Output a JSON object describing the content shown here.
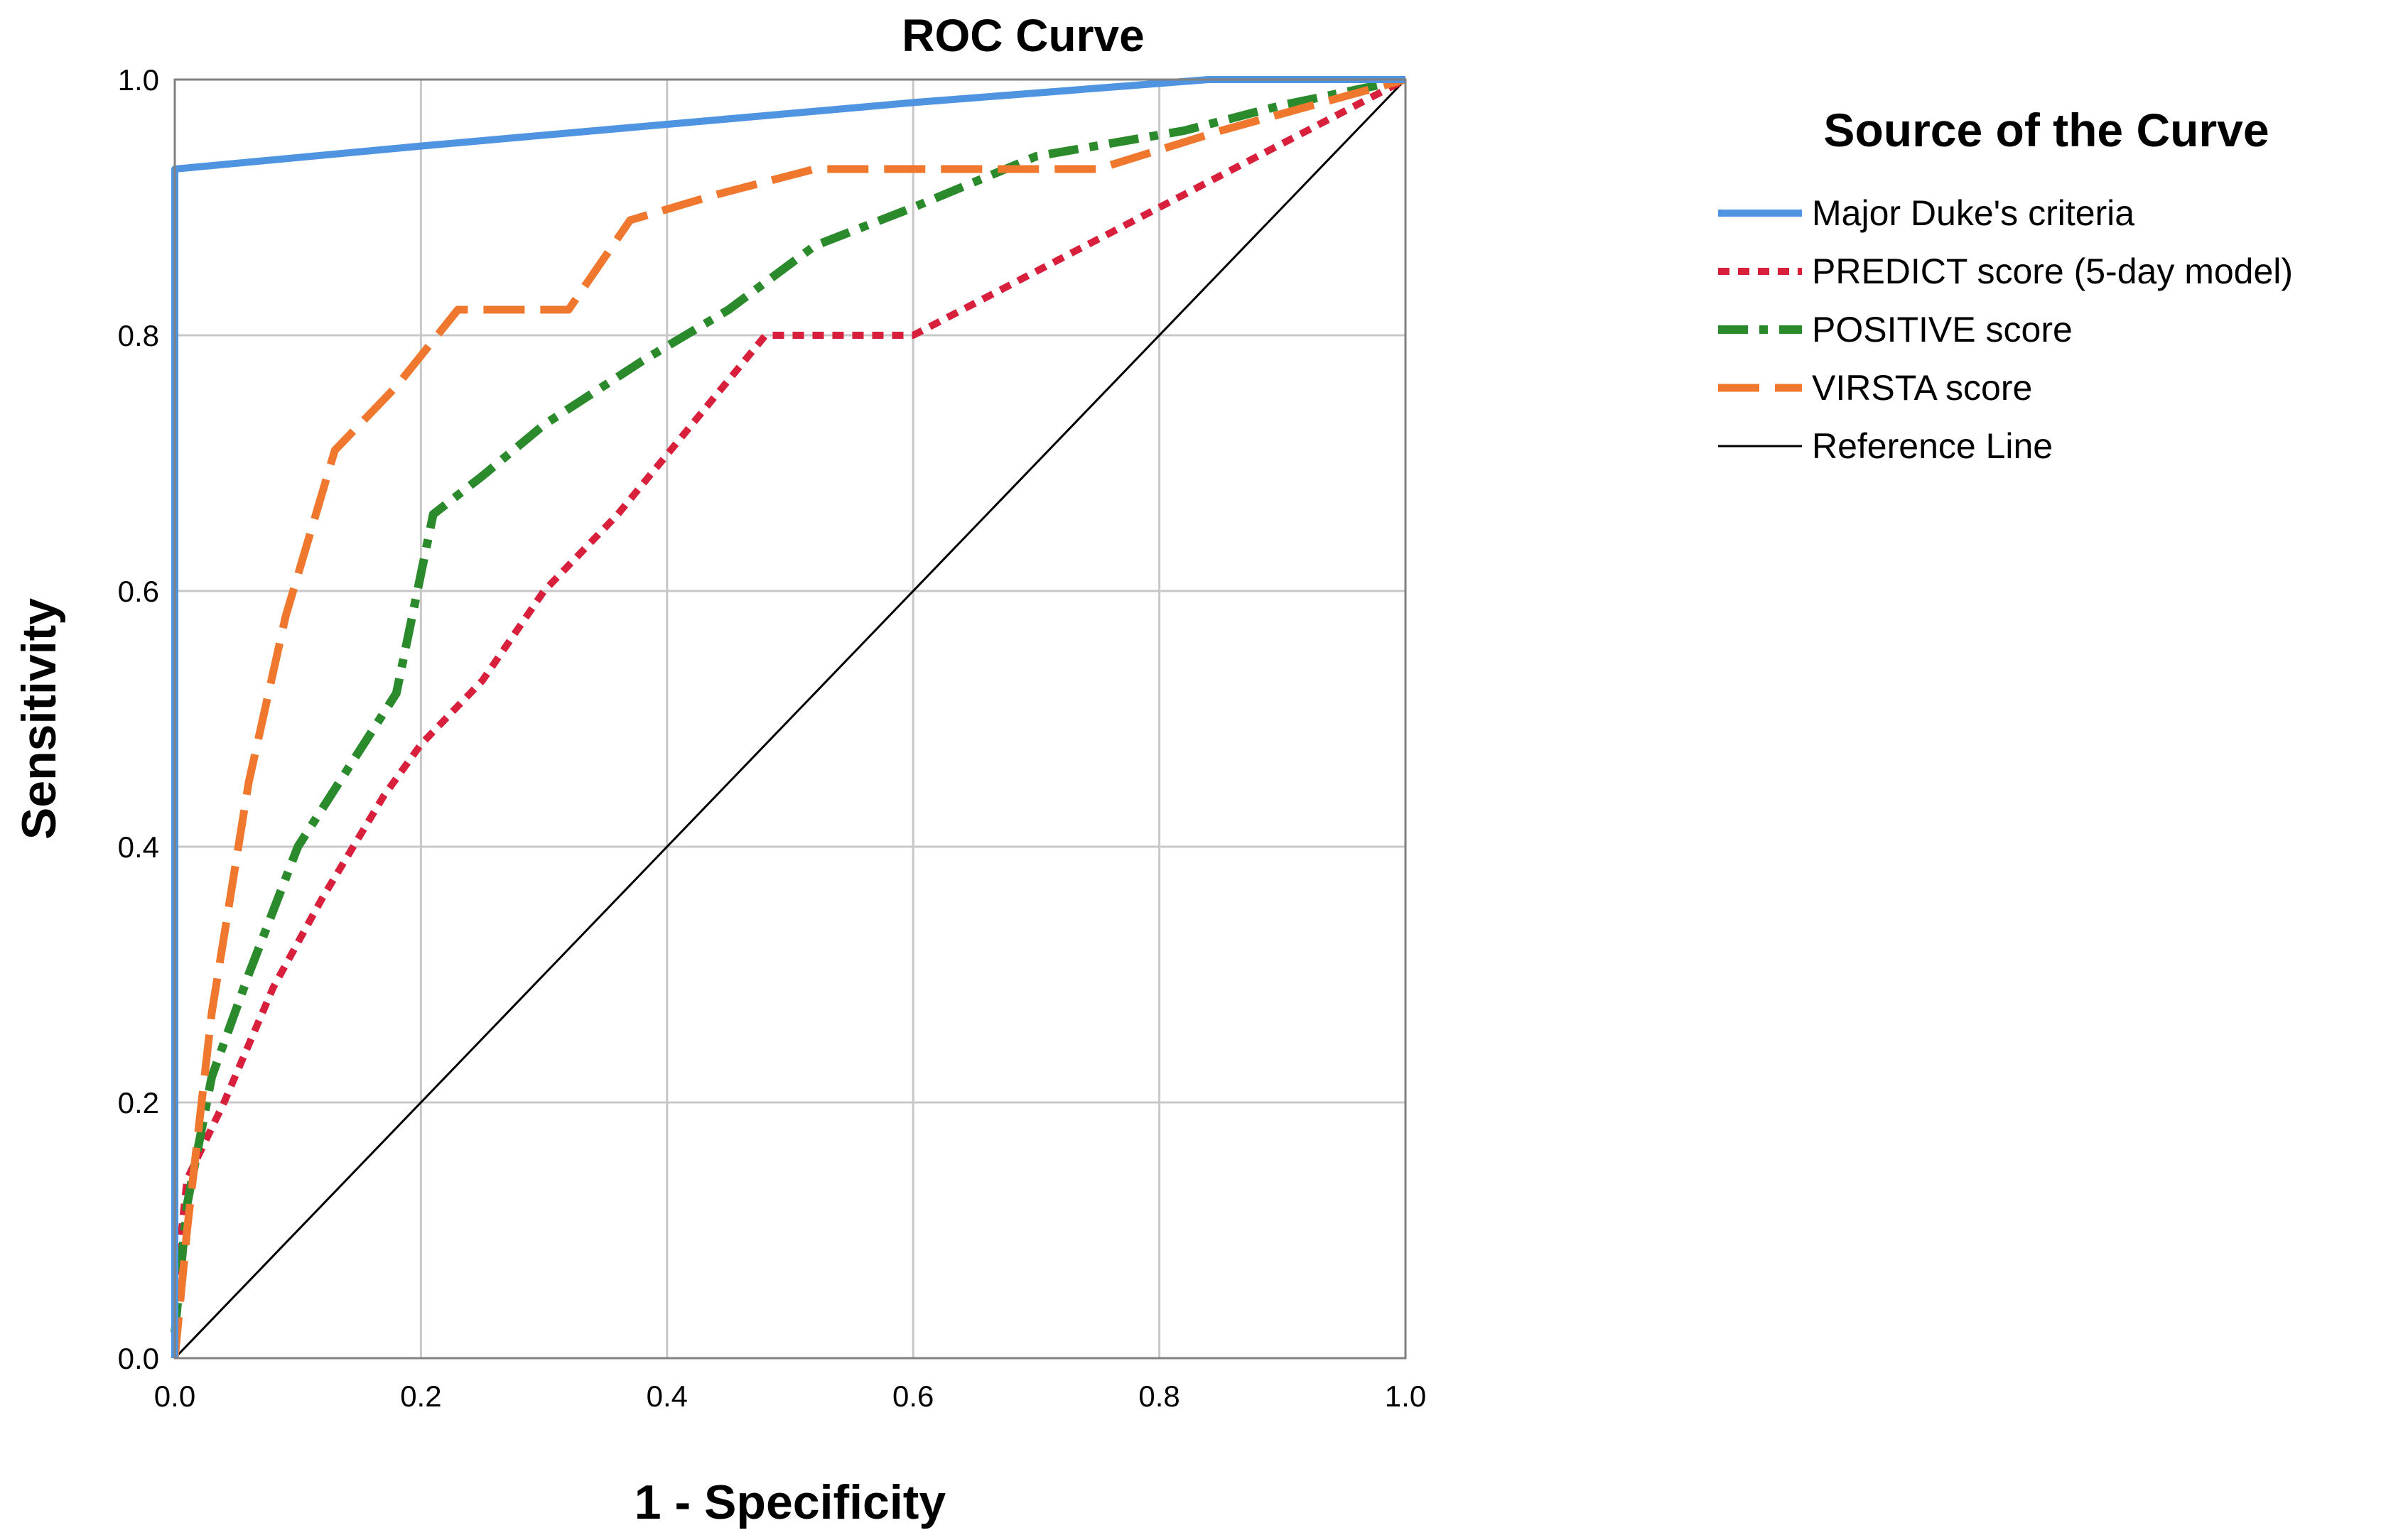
{
  "chart_data": {
    "type": "line",
    "title": "ROC Curve",
    "xlabel": "1 - Specificity",
    "ylabel": "Sensitivity",
    "xlim": [
      0,
      1
    ],
    "ylim": [
      0,
      1
    ],
    "x_ticks": [
      "0.0",
      "0.2",
      "0.4",
      "0.6",
      "0.8",
      "1.0"
    ],
    "y_ticks": [
      "0.0",
      "0.2",
      "0.4",
      "0.6",
      "0.8",
      "1.0"
    ],
    "grid": true,
    "legend_title": "Source of the Curve",
    "legend_position": "right",
    "series": [
      {
        "name": "Major Duke's criteria",
        "color": "#4e94e0",
        "style": "solid",
        "points": [
          [
            0,
            0
          ],
          [
            0,
            0.93
          ],
          [
            0.2,
            0.948
          ],
          [
            0.4,
            0.965
          ],
          [
            0.6,
            0.982
          ],
          [
            0.84,
            1.0
          ],
          [
            1.0,
            1.0
          ]
        ]
      },
      {
        "name": "PREDICT score (5-day model)",
        "color": "#d81f3c",
        "style": "dotted",
        "points": [
          [
            0,
            0.05
          ],
          [
            0.01,
            0.14
          ],
          [
            0.04,
            0.2
          ],
          [
            0.08,
            0.29
          ],
          [
            0.12,
            0.36
          ],
          [
            0.17,
            0.44
          ],
          [
            0.2,
            0.48
          ],
          [
            0.25,
            0.53
          ],
          [
            0.3,
            0.6
          ],
          [
            0.36,
            0.66
          ],
          [
            0.42,
            0.73
          ],
          [
            0.48,
            0.8
          ],
          [
            0.6,
            0.8
          ],
          [
            0.68,
            0.84
          ],
          [
            0.8,
            0.9
          ],
          [
            0.9,
            0.95
          ],
          [
            1.0,
            1.0
          ]
        ]
      },
      {
        "name": "POSITIVE score",
        "color": "#2b8a2b",
        "style": "dashdot",
        "points": [
          [
            0,
            0.02
          ],
          [
            0.01,
            0.12
          ],
          [
            0.03,
            0.22
          ],
          [
            0.06,
            0.3
          ],
          [
            0.1,
            0.4
          ],
          [
            0.14,
            0.46
          ],
          [
            0.18,
            0.52
          ],
          [
            0.21,
            0.66
          ],
          [
            0.25,
            0.69
          ],
          [
            0.3,
            0.73
          ],
          [
            0.38,
            0.78
          ],
          [
            0.45,
            0.82
          ],
          [
            0.52,
            0.87
          ],
          [
            0.6,
            0.9
          ],
          [
            0.7,
            0.94
          ],
          [
            0.82,
            0.96
          ],
          [
            0.9,
            0.98
          ],
          [
            1.0,
            1.0
          ]
        ]
      },
      {
        "name": "VIRSTA score",
        "color": "#f0782e",
        "style": "dashed",
        "points": [
          [
            0,
            0
          ],
          [
            0.01,
            0.1
          ],
          [
            0.03,
            0.27
          ],
          [
            0.06,
            0.45
          ],
          [
            0.09,
            0.58
          ],
          [
            0.13,
            0.71
          ],
          [
            0.18,
            0.76
          ],
          [
            0.23,
            0.82
          ],
          [
            0.32,
            0.82
          ],
          [
            0.37,
            0.89
          ],
          [
            0.44,
            0.91
          ],
          [
            0.52,
            0.93
          ],
          [
            0.75,
            0.93
          ],
          [
            0.85,
            0.96
          ],
          [
            1.0,
            1.0
          ]
        ]
      },
      {
        "name": "Reference Line",
        "color": "#000000",
        "style": "reference",
        "points": [
          [
            0,
            0
          ],
          [
            1,
            1
          ]
        ]
      }
    ]
  }
}
